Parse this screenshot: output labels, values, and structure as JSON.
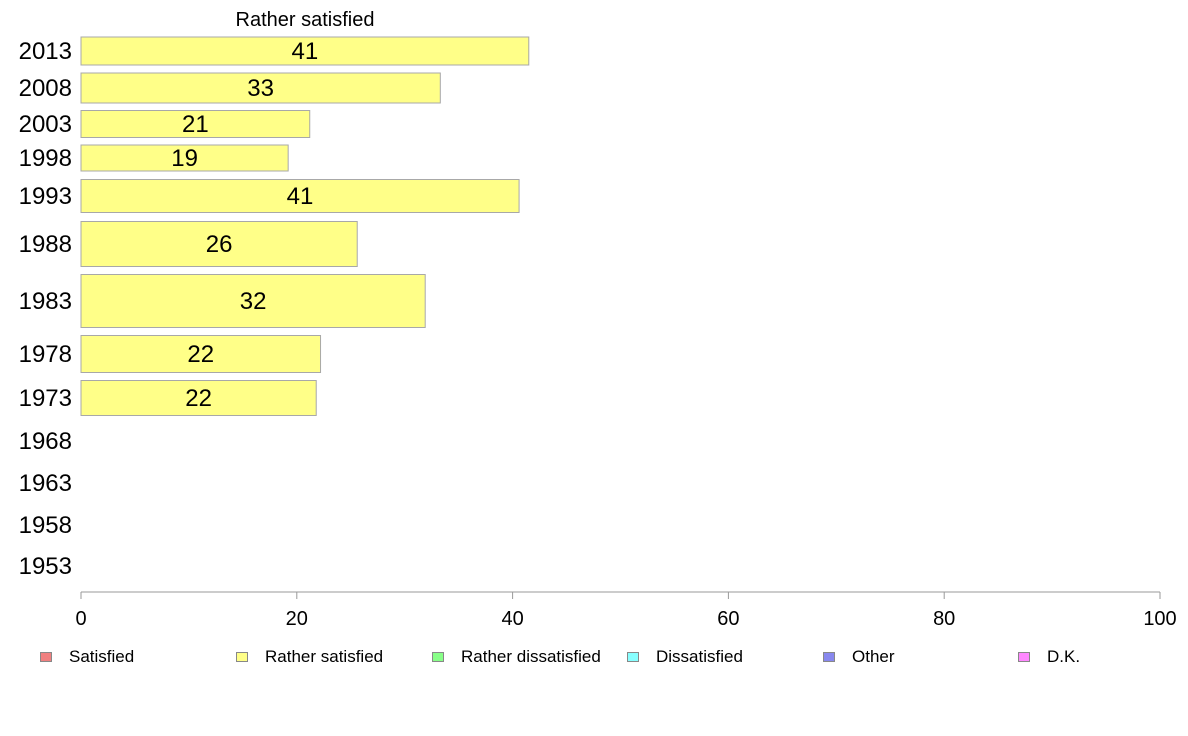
{
  "chart_data": {
    "type": "bar",
    "orientation": "horizontal",
    "title": "Rather satisfied",
    "xlabel": "",
    "ylabel": "",
    "xlim": [
      0,
      100
    ],
    "x_ticks": [
      0,
      20,
      40,
      60,
      80,
      100
    ],
    "categories": [
      "2013",
      "2008",
      "2003",
      "1998",
      "1993",
      "1988",
      "1983",
      "1978",
      "1973",
      "1968",
      "1963",
      "1958",
      "1953"
    ],
    "series": [
      {
        "name": "Rather satisfied",
        "color": "#ffff88",
        "values": [
          41.5,
          33.3,
          21.2,
          19.2,
          40.6,
          25.6,
          31.9,
          22.2,
          21.8,
          null,
          null,
          null,
          null
        ],
        "labels": [
          "41",
          "33",
          "21",
          "19",
          "41",
          "26",
          "32",
          "22",
          "22",
          "",
          "",
          "",
          ""
        ]
      }
    ],
    "legend": {
      "placement": "bottom",
      "items": [
        {
          "label": "Satisfied",
          "color": "#f08080"
        },
        {
          "label": "Rather satisfied",
          "color": "#ffff88"
        },
        {
          "label": "Rather dissatisfied",
          "color": "#88ff88"
        },
        {
          "label": "Dissatisfied",
          "color": "#88ffff"
        },
        {
          "label": "Other",
          "color": "#8888ee"
        },
        {
          "label": "D.K.",
          "color": "#ff88ff"
        }
      ]
    },
    "grid": false
  }
}
